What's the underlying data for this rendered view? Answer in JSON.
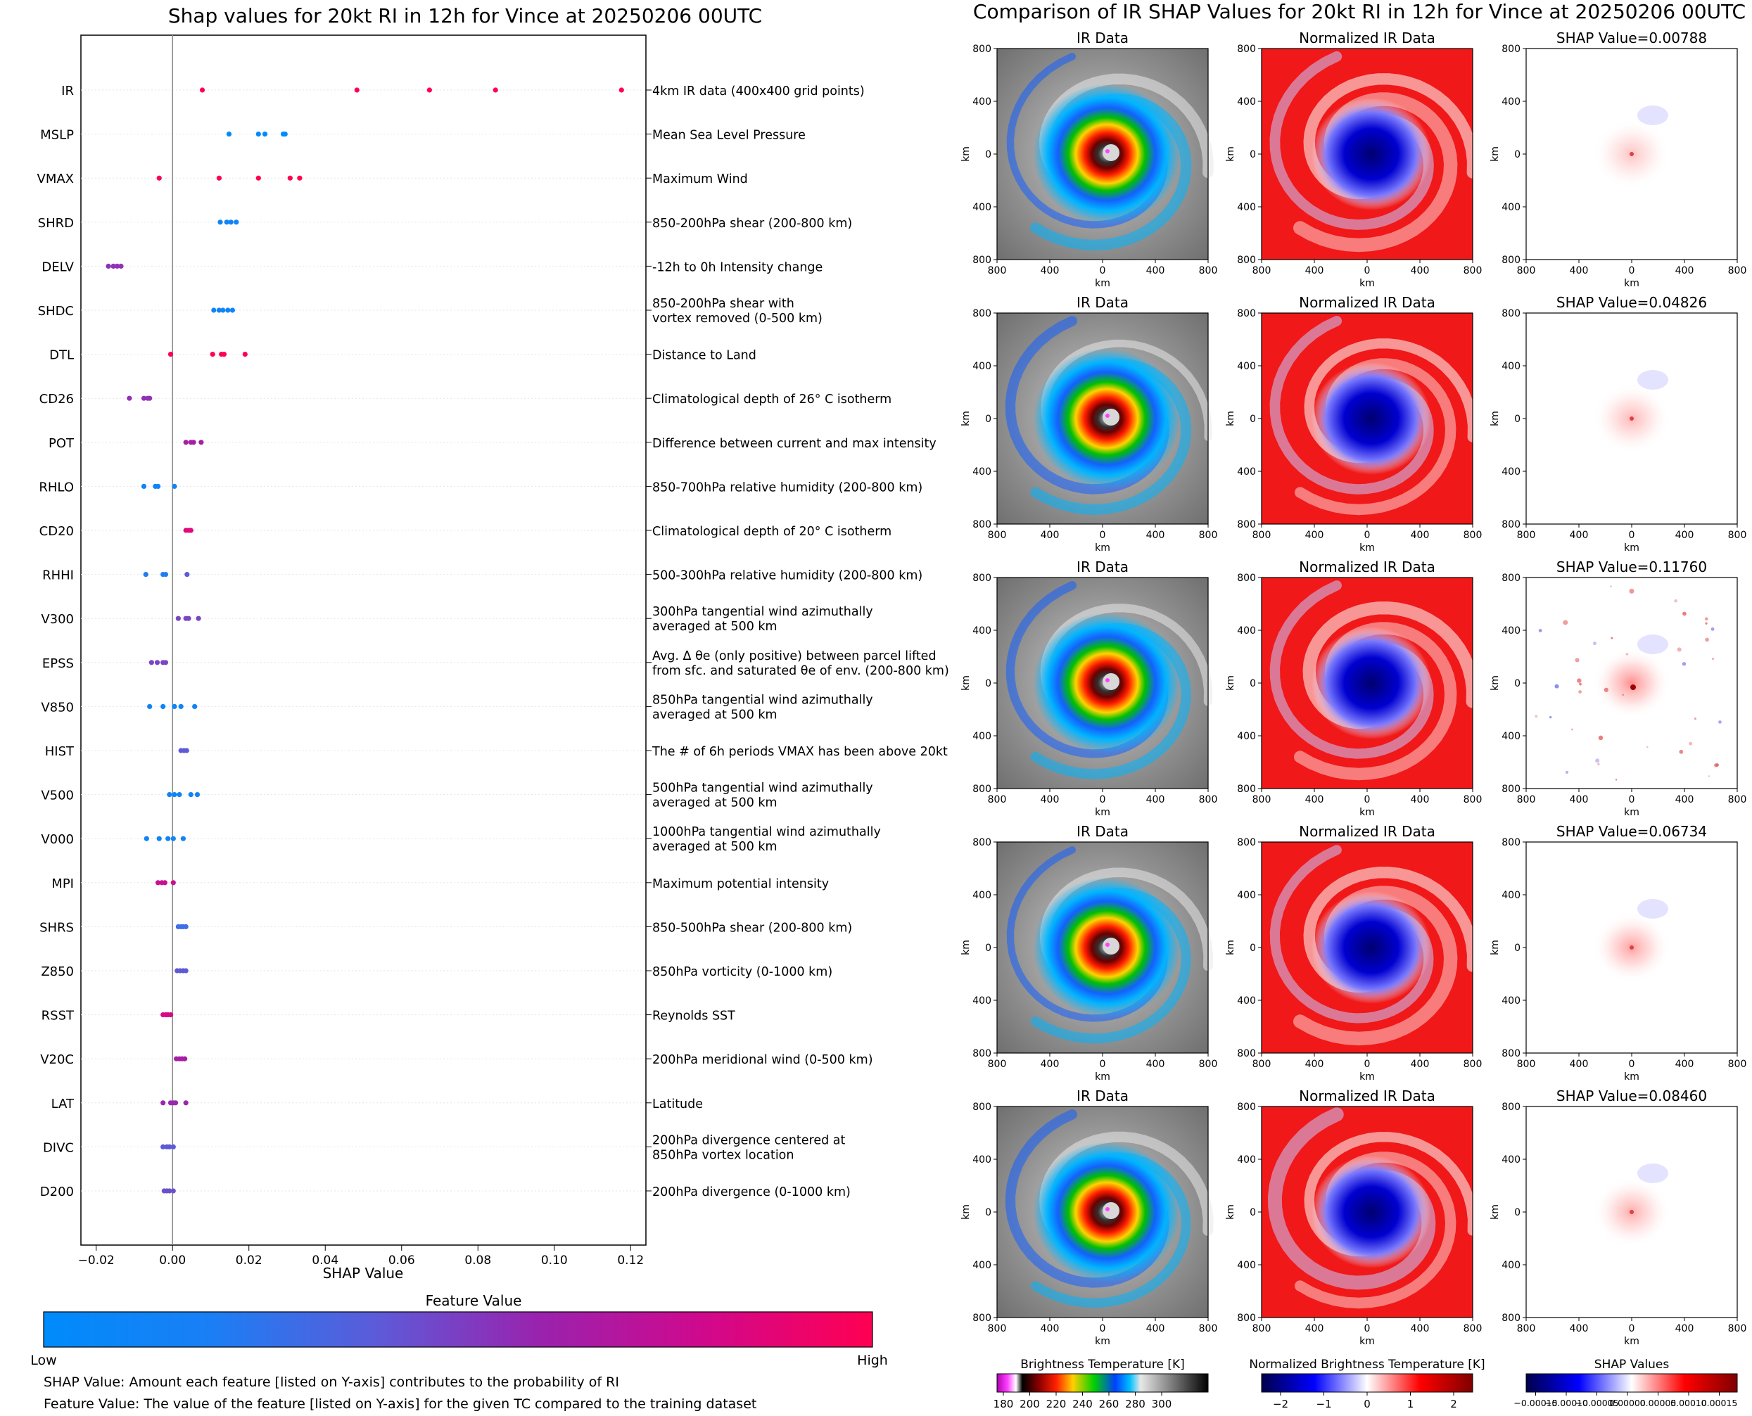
{
  "left_title": "Shap values for 20kt RI in 12h for Vince at 20250206 00UTC",
  "right_title": "Comparison of IR SHAP Values for 20kt RI in 12h for Vince at 20250206 00UTC",
  "chart_data": [
    {
      "type": "scatter",
      "title": "Shap values for 20kt RI in 12h for Vince at 20250206 00UTC",
      "xlabel": "SHAP Value",
      "xlim": [
        -0.024,
        0.124
      ],
      "xticks": [
        -0.02,
        0.0,
        0.02,
        0.04,
        0.06,
        0.08,
        0.1,
        0.12
      ],
      "xtick_labels": [
        "−0.02",
        "0.00",
        "0.02",
        "0.04",
        "0.06",
        "0.08",
        "0.10",
        "0.12"
      ],
      "zero_line": true,
      "colorbar": {
        "label": "Feature Value",
        "low": "Low",
        "high": "High",
        "colors": [
          "#008bfb",
          "#3f6fe6",
          "#7a45c4",
          "#a51ea5",
          "#d60a87",
          "#ff0052"
        ]
      },
      "features": [
        {
          "name": "IR",
          "description": "4km IR data (400x400 grid points)",
          "points": [
            [
              0.0078,
              1.0
            ],
            [
              0.0483,
              1.0
            ],
            [
              0.0673,
              1.0
            ],
            [
              0.0846,
              1.0
            ],
            [
              0.1176,
              1.0
            ]
          ]
        },
        {
          "name": "MSLP",
          "description": "Mean Sea Level Pressure",
          "points": [
            [
              0.0148,
              0.0
            ],
            [
              0.0225,
              0.0
            ],
            [
              0.0242,
              0.0
            ],
            [
              0.029,
              0.0
            ],
            [
              0.0295,
              0.0
            ]
          ]
        },
        {
          "name": "VMAX",
          "description": "Maximum Wind",
          "points": [
            [
              -0.0035,
              0.95
            ],
            [
              0.0122,
              1.0
            ],
            [
              0.0225,
              1.0
            ],
            [
              0.0308,
              1.0
            ],
            [
              0.0333,
              1.0
            ]
          ]
        },
        {
          "name": "SHRD",
          "description": "850-200hPa shear (200-800 km)",
          "points": [
            [
              0.0125,
              0.05
            ],
            [
              0.0142,
              0.05
            ],
            [
              0.0153,
              0.05
            ],
            [
              0.0167,
              0.05
            ]
          ]
        },
        {
          "name": "DELV",
          "description": "-12h to 0h Intensity change",
          "points": [
            [
              -0.0168,
              0.5
            ],
            [
              -0.0155,
              0.5
            ],
            [
              -0.0145,
              0.5
            ],
            [
              -0.0135,
              0.5
            ]
          ]
        },
        {
          "name": "SHDC",
          "description": "850-200hPa shear with\nvortex removed (0-500 km)",
          "points": [
            [
              0.0108,
              0.05
            ],
            [
              0.0122,
              0.05
            ],
            [
              0.0132,
              0.05
            ],
            [
              0.0145,
              0.05
            ],
            [
              0.0157,
              0.05
            ]
          ]
        },
        {
          "name": "DTL",
          "description": "Distance to Land",
          "points": [
            [
              -0.0005,
              1.0
            ],
            [
              0.0105,
              1.0
            ],
            [
              0.0128,
              1.0
            ],
            [
              0.0135,
              1.0
            ],
            [
              0.019,
              1.0
            ]
          ]
        },
        {
          "name": "CD26",
          "description": "Climatological depth of 26° C isotherm",
          "points": [
            [
              -0.0113,
              0.5
            ],
            [
              -0.0075,
              0.5
            ],
            [
              -0.0065,
              0.5
            ],
            [
              -0.006,
              0.5
            ]
          ]
        },
        {
          "name": "POT",
          "description": "Difference between current and max intensity",
          "points": [
            [
              0.0035,
              0.6
            ],
            [
              0.0048,
              0.6
            ],
            [
              0.0055,
              0.6
            ],
            [
              0.0075,
              0.6
            ]
          ]
        },
        {
          "name": "RHLO",
          "description": "850-700hPa relative humidity (200-800 km)",
          "points": [
            [
              -0.0075,
              0.05
            ],
            [
              -0.0045,
              0.05
            ],
            [
              -0.0038,
              0.05
            ],
            [
              0.0005,
              0.05
            ]
          ]
        },
        {
          "name": "CD20",
          "description": "Climatological depth of 20° C isotherm",
          "points": [
            [
              0.0035,
              0.85
            ],
            [
              0.0042,
              0.85
            ],
            [
              0.0048,
              0.85
            ]
          ]
        },
        {
          "name": "RHHI",
          "description": "500-300hPa relative humidity (200-800 km)",
          "points": [
            [
              -0.007,
              0.1
            ],
            [
              -0.0025,
              0.1
            ],
            [
              -0.0018,
              0.1
            ],
            [
              0.0038,
              0.3
            ]
          ]
        },
        {
          "name": "V300",
          "description": "300hPa tangential wind azimuthally\naveraged at 500 km",
          "points": [
            [
              0.0015,
              0.4
            ],
            [
              0.0035,
              0.4
            ],
            [
              0.0042,
              0.4
            ],
            [
              0.0068,
              0.4
            ]
          ]
        },
        {
          "name": "EPSS",
          "description": "Avg. Δ θe (only positive) between parcel lifted\nfrom sfc. and saturated θe of env. (200-800 km)",
          "points": [
            [
              -0.0055,
              0.4
            ],
            [
              -0.004,
              0.4
            ],
            [
              -0.0025,
              0.4
            ],
            [
              -0.0018,
              0.4
            ]
          ]
        },
        {
          "name": "V850",
          "description": "850hPa tangential wind azimuthally\naveraged at 500 km",
          "points": [
            [
              -0.006,
              0.05
            ],
            [
              -0.0025,
              0.05
            ],
            [
              0.0005,
              0.05
            ],
            [
              0.0022,
              0.05
            ],
            [
              0.0058,
              0.05
            ]
          ]
        },
        {
          "name": "HIST",
          "description": "The # of 6h periods VMAX has been above 20kt",
          "points": [
            [
              0.0022,
              0.3
            ],
            [
              0.003,
              0.3
            ],
            [
              0.0037,
              0.3
            ]
          ]
        },
        {
          "name": "V500",
          "description": "500hPa tangential wind azimuthally\naveraged at 500 km",
          "points": [
            [
              -0.0008,
              0.05
            ],
            [
              0.0005,
              0.05
            ],
            [
              0.0018,
              0.05
            ],
            [
              0.0048,
              0.05
            ],
            [
              0.0065,
              0.05
            ]
          ]
        },
        {
          "name": "V000",
          "description": "1000hPa tangential wind azimuthally\naveraged at 500 km",
          "points": [
            [
              -0.0068,
              0.05
            ],
            [
              -0.0035,
              0.05
            ],
            [
              -0.0012,
              0.05
            ],
            [
              0.0002,
              0.05
            ],
            [
              0.0028,
              0.05
            ]
          ]
        },
        {
          "name": "MPI",
          "description": "Maximum potential intensity",
          "points": [
            [
              -0.0038,
              0.75
            ],
            [
              -0.0028,
              0.75
            ],
            [
              -0.002,
              0.75
            ],
            [
              0.0002,
              0.75
            ]
          ]
        },
        {
          "name": "SHRS",
          "description": "850-500hPa shear (200-800 km)",
          "points": [
            [
              0.0015,
              0.2
            ],
            [
              0.0022,
              0.2
            ],
            [
              0.0028,
              0.2
            ],
            [
              0.0035,
              0.2
            ]
          ]
        },
        {
          "name": "Z850",
          "description": "850hPa vorticity (0-1000 km)",
          "points": [
            [
              0.0012,
              0.3
            ],
            [
              0.002,
              0.3
            ],
            [
              0.0028,
              0.3
            ],
            [
              0.0035,
              0.3
            ]
          ]
        },
        {
          "name": "RSST",
          "description": "Reynolds SST",
          "points": [
            [
              -0.0025,
              0.8
            ],
            [
              -0.0018,
              0.8
            ],
            [
              -0.0012,
              0.8
            ],
            [
              -0.0005,
              0.8
            ]
          ]
        },
        {
          "name": "V20C",
          "description": "200hPa meridional wind (0-500 km)",
          "points": [
            [
              0.001,
              0.6
            ],
            [
              0.0018,
              0.6
            ],
            [
              0.0025,
              0.6
            ],
            [
              0.0032,
              0.6
            ]
          ]
        },
        {
          "name": "LAT",
          "description": "Latitude",
          "points": [
            [
              -0.0025,
              0.55
            ],
            [
              -0.0005,
              0.55
            ],
            [
              0.0002,
              0.55
            ],
            [
              0.0008,
              0.55
            ],
            [
              0.0035,
              0.55
            ]
          ]
        },
        {
          "name": "DIVC",
          "description": "200hPa divergence centered at\n850hPa vortex location",
          "points": [
            [
              -0.0025,
              0.3
            ],
            [
              -0.0015,
              0.3
            ],
            [
              -0.0008,
              0.3
            ],
            [
              0.0002,
              0.3
            ]
          ]
        },
        {
          "name": "D200",
          "description": "200hPa divergence (0-1000 km)",
          "points": [
            [
              -0.0022,
              0.35
            ],
            [
              -0.0015,
              0.35
            ],
            [
              -0.0008,
              0.35
            ],
            [
              0.0002,
              0.35
            ]
          ]
        }
      ]
    },
    {
      "type": "heatmap",
      "title": "Comparison of IR SHAP Values for 20kt RI in 12h for Vince at 20250206 00UTC",
      "column_titles": [
        "IR Data",
        "Normalized IR Data"
      ],
      "shap_titles": [
        "SHAP Value=0.00788",
        "SHAP Value=0.04826",
        "SHAP Value=0.11760",
        "SHAP Value=0.06734",
        "SHAP Value=0.08460"
      ],
      "xlabel": "km",
      "ylabel": "km",
      "tick_labels": [
        "800",
        "400",
        "0",
        "400",
        "800"
      ],
      "colorbars": [
        {
          "label": "Brightness Temperature [K]",
          "ticks": [
            "180",
            "200",
            "220",
            "240",
            "260",
            "280",
            "300"
          ]
        },
        {
          "label": "Normalized Brightness Temperature [K]",
          "ticks": [
            "−2",
            "−1",
            "0",
            "1",
            "2"
          ]
        },
        {
          "label": "SHAP Values",
          "ticks": [
            "−0.00015",
            "−0.00010",
            "−0.00005",
            "0.00000",
            "0.00005",
            "0.00010",
            "0.00015"
          ]
        }
      ]
    }
  ],
  "footnotes": [
    "SHAP Value: Amount each feature [listed on Y-axis] contributes to the probability of RI",
    "Feature Value: The value of the feature [listed on Y-axis] for the given TC compared to the training dataset"
  ]
}
